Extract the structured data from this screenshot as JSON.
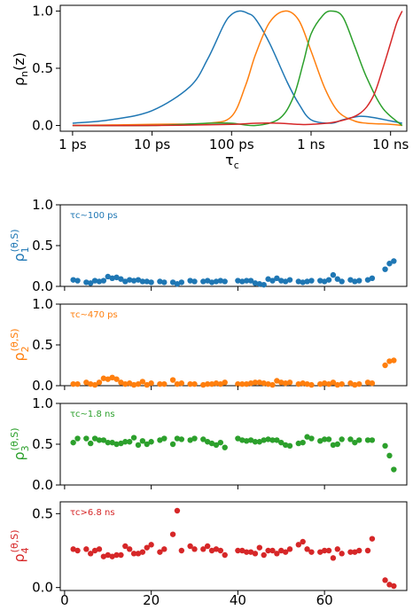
{
  "colors": {
    "blue": "#1f77b4",
    "orange": "#ff7f0e",
    "green": "#2ca02c",
    "red": "#d62728",
    "axis": "#000000"
  },
  "chart_data": [
    {
      "type": "line",
      "xscale": "log",
      "xlim_seconds": [
        7e-13,
        1.6e-08
      ],
      "ylim": [
        -0.05,
        1.05
      ],
      "xticks": [
        {
          "value_s": 1e-12,
          "label": "1 ps"
        },
        {
          "value_s": 1e-11,
          "label": "10 ps"
        },
        {
          "value_s": 1e-10,
          "label": "100 ps"
        },
        {
          "value_s": 1e-09,
          "label": "1 ns"
        },
        {
          "value_s": 1e-08,
          "label": "10 ns"
        }
      ],
      "yticks": [
        "0.0",
        "0.5",
        "1.0"
      ],
      "xlabel": "τ",
      "xlabel_sub": "c",
      "ylabel": "ρ",
      "ylabel_sub": "n",
      "ylabel_tail": "(z)",
      "series": [
        {
          "color_key": "blue",
          "x_s": [
            1e-12,
            3e-12,
            1e-11,
            3e-11,
            5e-11,
            8e-11,
            1e-10,
            1.25e-10,
            1.6e-10,
            2e-10,
            3e-10,
            5e-10,
            7e-10,
            1e-09,
            1.8e-09,
            2.5e-09,
            4e-09,
            6e-09,
            1e-08,
            1.4e-08
          ],
          "values": [
            0.02,
            0.05,
            0.13,
            0.34,
            0.58,
            0.88,
            0.97,
            1.0,
            0.98,
            0.93,
            0.72,
            0.38,
            0.19,
            0.05,
            0.02,
            0.05,
            0.08,
            0.07,
            0.04,
            0.02
          ]
        },
        {
          "color_key": "orange",
          "x_s": [
            1e-12,
            1e-11,
            5e-11,
            1e-10,
            1.5e-10,
            2e-10,
            3e-10,
            4.7e-10,
            7e-10,
            1e-09,
            1.5e-09,
            2.2e-09,
            3.5e-09,
            5e-09,
            1e-08,
            1.4e-08
          ],
          "values": [
            0.0,
            0.01,
            0.02,
            0.08,
            0.35,
            0.62,
            0.9,
            1.0,
            0.92,
            0.65,
            0.32,
            0.12,
            0.04,
            0.02,
            0.01,
            0.0
          ]
        },
        {
          "color_key": "green",
          "x_s": [
            1e-12,
            1e-11,
            5e-11,
            1e-10,
            2e-10,
            4e-10,
            6e-10,
            8e-10,
            1e-09,
            1.4e-09,
            1.8e-09,
            2.5e-09,
            3.5e-09,
            5e-09,
            8e-09,
            1.4e-08
          ],
          "values": [
            0.0,
            0.0,
            0.02,
            0.02,
            0.0,
            0.06,
            0.25,
            0.55,
            0.8,
            0.96,
            1.0,
            0.95,
            0.7,
            0.42,
            0.15,
            0.0
          ]
        },
        {
          "color_key": "red",
          "x_s": [
            1e-12,
            1e-11,
            1e-10,
            2e-10,
            4e-10,
            7e-10,
            1e-09,
            2e-09,
            4e-09,
            6e-09,
            8e-09,
            1e-08,
            1.2e-08,
            1.4e-08
          ],
          "values": [
            0.0,
            0.0,
            0.01,
            0.02,
            0.02,
            0.01,
            0.01,
            0.03,
            0.1,
            0.25,
            0.5,
            0.72,
            0.9,
            1.0
          ]
        }
      ]
    },
    {
      "type": "scatter",
      "label": "τc~100 ps",
      "color_key": "blue",
      "ylabel": "ρ",
      "ylabel_sup": "(θ,S)",
      "ylabel_sub": "1",
      "ylim": [
        0,
        1.0
      ],
      "yticks": [
        0.0,
        0.5,
        1.0
      ],
      "ytick_labels": [
        "0.0",
        "0.5",
        "1.0"
      ],
      "x": [
        2,
        3,
        5,
        6,
        7,
        8,
        9,
        10,
        11,
        12,
        13,
        14,
        15,
        16,
        17,
        18,
        19,
        20,
        22,
        23,
        25,
        26,
        27,
        29,
        30,
        32,
        33,
        34,
        35,
        36,
        37,
        40,
        41,
        42,
        43,
        44,
        45,
        46,
        47,
        48,
        49,
        50,
        51,
        52,
        54,
        55,
        56,
        57,
        59,
        60,
        61,
        62,
        63,
        64,
        66,
        67,
        68,
        70,
        71,
        74,
        75,
        76
      ],
      "values": [
        0.08,
        0.07,
        0.05,
        0.04,
        0.07,
        0.06,
        0.07,
        0.12,
        0.1,
        0.11,
        0.09,
        0.06,
        0.08,
        0.07,
        0.08,
        0.06,
        0.06,
        0.05,
        0.06,
        0.05,
        0.05,
        0.03,
        0.05,
        0.07,
        0.06,
        0.06,
        0.07,
        0.05,
        0.06,
        0.07,
        0.06,
        0.07,
        0.06,
        0.07,
        0.07,
        0.04,
        0.03,
        0.02,
        0.09,
        0.07,
        0.1,
        0.07,
        0.06,
        0.08,
        0.06,
        0.05,
        0.06,
        0.07,
        0.07,
        0.06,
        0.08,
        0.14,
        0.09,
        0.06,
        0.08,
        0.06,
        0.07,
        0.08,
        0.1,
        0.21,
        0.28,
        0.31
      ]
    },
    {
      "type": "scatter",
      "label": "τc~470 ps",
      "color_key": "orange",
      "ylabel": "ρ",
      "ylabel_sup": "(θ,S)",
      "ylabel_sub": "2",
      "ylim": [
        0,
        1.0
      ],
      "yticks": [
        0.0,
        0.5,
        1.0
      ],
      "ytick_labels": [
        "0.0",
        "0.5",
        "1.0"
      ],
      "x": [
        2,
        3,
        5,
        6,
        7,
        8,
        9,
        10,
        11,
        12,
        13,
        14,
        15,
        16,
        17,
        18,
        19,
        20,
        22,
        23,
        25,
        26,
        27,
        29,
        30,
        32,
        33,
        34,
        35,
        36,
        37,
        40,
        41,
        42,
        43,
        44,
        45,
        46,
        47,
        48,
        49,
        50,
        51,
        52,
        54,
        55,
        56,
        57,
        59,
        60,
        61,
        62,
        63,
        64,
        66,
        67,
        68,
        70,
        71,
        74,
        75,
        76
      ],
      "values": [
        0.02,
        0.02,
        0.04,
        0.02,
        0.01,
        0.04,
        0.09,
        0.08,
        0.1,
        0.08,
        0.04,
        0.02,
        0.03,
        0.01,
        0.02,
        0.05,
        0.01,
        0.03,
        0.02,
        0.02,
        0.07,
        0.02,
        0.03,
        0.02,
        0.02,
        0.01,
        0.02,
        0.02,
        0.03,
        0.02,
        0.04,
        0.02,
        0.02,
        0.02,
        0.03,
        0.04,
        0.04,
        0.03,
        0.02,
        0.01,
        0.06,
        0.04,
        0.03,
        0.04,
        0.02,
        0.03,
        0.02,
        0.01,
        0.02,
        0.03,
        0.02,
        0.04,
        0.01,
        0.02,
        0.03,
        0.01,
        0.02,
        0.04,
        0.03,
        0.25,
        0.3,
        0.31
      ]
    },
    {
      "type": "scatter",
      "label": "τc~1.8 ns",
      "color_key": "green",
      "ylabel": "ρ",
      "ylabel_sup": "(θ,S)",
      "ylabel_sub": "3",
      "ylim": [
        0,
        1.0
      ],
      "yticks": [
        0.0,
        0.5,
        1.0
      ],
      "ytick_labels": [
        "0.0",
        "0.5",
        "1.0"
      ],
      "x": [
        2,
        3,
        5,
        6,
        7,
        8,
        9,
        10,
        11,
        12,
        13,
        14,
        15,
        16,
        17,
        18,
        19,
        20,
        22,
        23,
        25,
        26,
        27,
        29,
        30,
        32,
        33,
        34,
        35,
        36,
        37,
        40,
        41,
        42,
        43,
        44,
        45,
        46,
        47,
        48,
        49,
        50,
        51,
        52,
        54,
        55,
        56,
        57,
        59,
        60,
        61,
        62,
        63,
        64,
        66,
        67,
        68,
        70,
        71,
        74,
        75,
        76
      ],
      "values": [
        0.52,
        0.57,
        0.57,
        0.51,
        0.57,
        0.55,
        0.55,
        0.52,
        0.52,
        0.5,
        0.51,
        0.53,
        0.53,
        0.58,
        0.49,
        0.54,
        0.5,
        0.53,
        0.55,
        0.57,
        0.5,
        0.57,
        0.56,
        0.55,
        0.57,
        0.56,
        0.53,
        0.51,
        0.49,
        0.52,
        0.46,
        0.57,
        0.55,
        0.54,
        0.55,
        0.53,
        0.53,
        0.55,
        0.56,
        0.55,
        0.55,
        0.52,
        0.49,
        0.48,
        0.51,
        0.52,
        0.59,
        0.57,
        0.54,
        0.56,
        0.56,
        0.49,
        0.5,
        0.56,
        0.56,
        0.52,
        0.55,
        0.55,
        0.55,
        0.48,
        0.36,
        0.19
      ]
    },
    {
      "type": "scatter",
      "label": "τc>6.8 ns",
      "color_key": "red",
      "ylabel": "ρ",
      "ylabel_sup": "(θ,S)",
      "ylabel_sub": "4",
      "ylim": [
        -0.02,
        0.58
      ],
      "yticks": [
        0.0,
        0.5
      ],
      "ytick_labels": [
        "0.0",
        "0.5"
      ],
      "x": [
        2,
        3,
        5,
        6,
        7,
        8,
        9,
        10,
        11,
        12,
        13,
        14,
        15,
        16,
        17,
        18,
        19,
        20,
        22,
        23,
        25,
        26,
        27,
        29,
        30,
        32,
        33,
        34,
        35,
        36,
        37,
        40,
        41,
        42,
        43,
        44,
        45,
        46,
        47,
        48,
        49,
        50,
        51,
        52,
        54,
        55,
        56,
        57,
        59,
        60,
        61,
        62,
        63,
        64,
        66,
        67,
        68,
        70,
        71,
        74,
        75,
        76
      ],
      "values": [
        0.26,
        0.25,
        0.26,
        0.23,
        0.25,
        0.26,
        0.21,
        0.22,
        0.21,
        0.22,
        0.22,
        0.28,
        0.26,
        0.23,
        0.23,
        0.24,
        0.27,
        0.29,
        0.24,
        0.26,
        0.36,
        0.52,
        0.25,
        0.28,
        0.26,
        0.26,
        0.28,
        0.25,
        0.26,
        0.25,
        0.22,
        0.25,
        0.25,
        0.24,
        0.24,
        0.23,
        0.27,
        0.22,
        0.25,
        0.25,
        0.23,
        0.25,
        0.24,
        0.26,
        0.29,
        0.31,
        0.26,
        0.24,
        0.24,
        0.25,
        0.25,
        0.2,
        0.26,
        0.23,
        0.24,
        0.24,
        0.25,
        0.25,
        0.33,
        0.05,
        0.02,
        0.01
      ]
    }
  ],
  "shared_xaxis": {
    "ticks": [
      0,
      20,
      40,
      60
    ],
    "tick_labels": [
      "0",
      "20",
      "40",
      "60"
    ],
    "xlim": [
      -1,
      79
    ]
  }
}
